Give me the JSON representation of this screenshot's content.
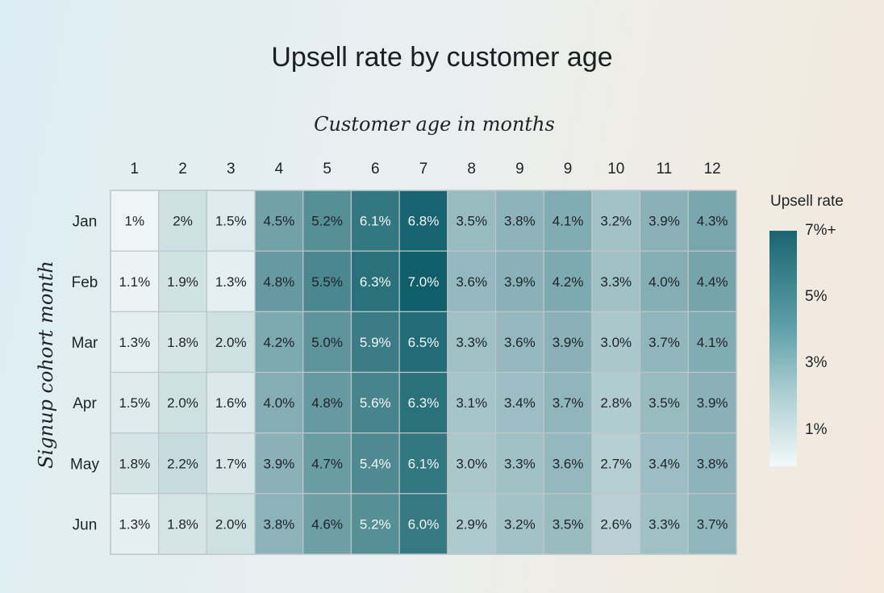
{
  "chart_data": {
    "type": "heatmap",
    "title": "Upsell rate by customer age",
    "xlabel": "Customer age in months",
    "ylabel": "Signup cohort month",
    "x_categories": [
      "1",
      "2",
      "3",
      "4",
      "5",
      "6",
      "7",
      "8",
      "9",
      "9",
      "10",
      "11",
      "12"
    ],
    "y_categories": [
      "Jan",
      "Feb",
      "Mar",
      "Apr",
      "May",
      "Jun"
    ],
    "values": [
      [
        1.0,
        2.0,
        1.5,
        4.5,
        5.2,
        6.1,
        6.8,
        3.5,
        3.8,
        4.1,
        3.2,
        3.9,
        4.3
      ],
      [
        1.1,
        1.9,
        1.3,
        4.8,
        5.5,
        6.3,
        7.0,
        3.6,
        3.9,
        4.2,
        3.3,
        4.0,
        4.4
      ],
      [
        1.3,
        1.8,
        2.0,
        4.2,
        5.0,
        5.9,
        6.5,
        3.3,
        3.6,
        3.9,
        3.0,
        3.7,
        4.1
      ],
      [
        1.5,
        2.0,
        1.6,
        4.0,
        4.8,
        5.6,
        6.3,
        3.1,
        3.4,
        3.7,
        2.8,
        3.5,
        3.9
      ],
      [
        1.8,
        2.2,
        1.7,
        3.9,
        4.7,
        5.4,
        6.1,
        3.0,
        3.3,
        3.6,
        2.7,
        3.4,
        3.8
      ],
      [
        1.3,
        1.8,
        2.0,
        3.8,
        4.6,
        5.2,
        6.0,
        2.9,
        3.2,
        3.5,
        2.6,
        3.3,
        3.7
      ]
    ],
    "cell_labels": [
      [
        "1%",
        "2%",
        "1.5%",
        "4.5%",
        "5.2%",
        "6.1%",
        "6.8%",
        "3.5%",
        "3.8%",
        "4.1%",
        "3.2%",
        "3.9%",
        "4.3%"
      ],
      [
        "1.1%",
        "1.9%",
        "1.3%",
        "4.8%",
        "5.5%",
        "6.3%",
        "7.0%",
        "3.6%",
        "3.9%",
        "4.2%",
        "3.3%",
        "4.0%",
        "4.4%"
      ],
      [
        "1.3%",
        "1.8%",
        "2.0%",
        "4.2%",
        "5.0%",
        "5.9%",
        "6.5%",
        "3.3%",
        "3.6%",
        "3.9%",
        "3.0%",
        "3.7%",
        "4.1%"
      ],
      [
        "1.5%",
        "2.0%",
        "1.6%",
        "4.0%",
        "4.8%",
        "5.6%",
        "6.3%",
        "3.1%",
        "3.4%",
        "3.7%",
        "2.8%",
        "3.5%",
        "3.9%"
      ],
      [
        "1.8%",
        "2.2%",
        "1.7%",
        "3.9%",
        "4.7%",
        "5.4%",
        "6.1%",
        "3.0%",
        "3.3%",
        "3.6%",
        "2.7%",
        "3.4%",
        "3.8%"
      ],
      [
        "1.3%",
        "1.8%",
        "2.0%",
        "3.8%",
        "4.6%",
        "5.2%",
        "6.0%",
        "2.9%",
        "3.2%",
        "3.5%",
        "2.6%",
        "3.3%",
        "3.7%"
      ]
    ],
    "colorbar": {
      "title": "Upsell rate",
      "range": [
        0,
        7
      ],
      "ticks": [
        {
          "value": 7,
          "label": "7%+"
        },
        {
          "value": 5,
          "label": "5%"
        },
        {
          "value": 3,
          "label": "3%"
        },
        {
          "value": 1,
          "label": "1%"
        }
      ],
      "color_low": "#f3f9fa",
      "color_high": "#0f5e6a"
    },
    "legend_position": "right",
    "grid_color": "#bfc6c8"
  }
}
